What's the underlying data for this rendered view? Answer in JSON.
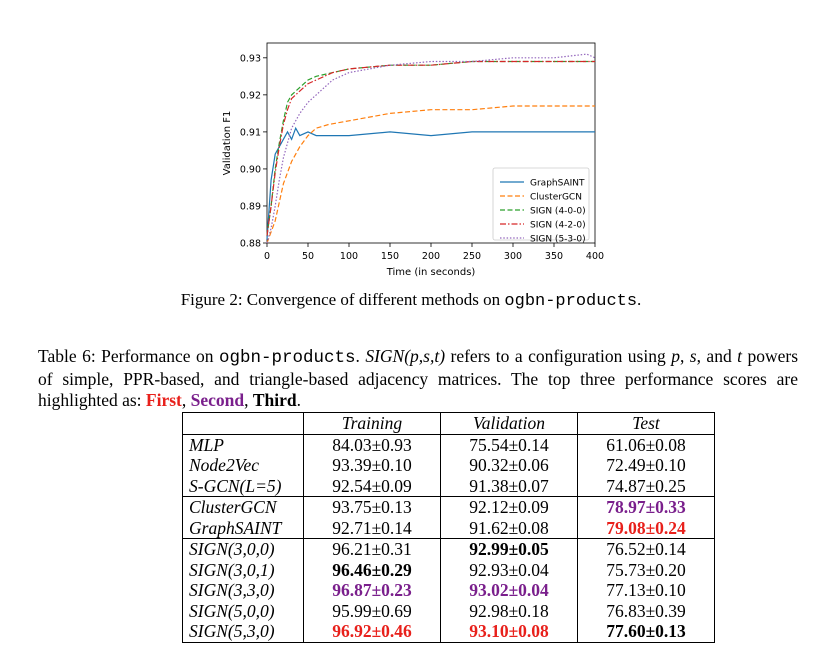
{
  "chart_data": {
    "type": "line",
    "title": "",
    "xlabel": "Time (in seconds)",
    "ylabel": "Validation F1",
    "xlim": [
      0,
      400
    ],
    "ylim": [
      0.88,
      0.934
    ],
    "x_ticks": [
      "0",
      "50",
      "100",
      "150",
      "200",
      "250",
      "300",
      "350",
      "400"
    ],
    "y_ticks": [
      "0.88",
      "0.89",
      "0.90",
      "0.91",
      "0.92",
      "0.93"
    ],
    "legend_position": "lower-right",
    "grid": false,
    "series": [
      {
        "name": "GraphSAINT",
        "color": "#1f77b4",
        "dash": "solid",
        "x": [
          0,
          5,
          10,
          15,
          20,
          25,
          30,
          35,
          40,
          50,
          60,
          80,
          100,
          150,
          200,
          250,
          300,
          350,
          380,
          400
        ],
        "values": [
          0.881,
          0.897,
          0.904,
          0.906,
          0.908,
          0.91,
          0.908,
          0.911,
          0.909,
          0.91,
          0.909,
          0.909,
          0.909,
          0.91,
          0.909,
          0.91,
          0.91,
          0.91,
          0.91,
          0.91
        ]
      },
      {
        "name": "ClusterGCN",
        "color": "#ff7f0e",
        "dash": "dashed",
        "x": [
          0,
          10,
          20,
          30,
          40,
          50,
          60,
          75,
          100,
          150,
          200,
          250,
          300,
          350,
          400
        ],
        "values": [
          0.88,
          0.886,
          0.896,
          0.902,
          0.906,
          0.909,
          0.911,
          0.912,
          0.913,
          0.915,
          0.916,
          0.916,
          0.917,
          0.917,
          0.917
        ]
      },
      {
        "name": "SIGN (4-0-0)",
        "color": "#2ca02c",
        "dash": "dashed",
        "x": [
          0,
          5,
          10,
          15,
          20,
          25,
          30,
          40,
          50,
          60,
          80,
          100,
          150,
          200,
          250,
          300,
          350,
          400
        ],
        "values": [
          0.882,
          0.89,
          0.9,
          0.907,
          0.913,
          0.918,
          0.92,
          0.922,
          0.924,
          0.925,
          0.926,
          0.927,
          0.928,
          0.928,
          0.929,
          0.929,
          0.929,
          0.929
        ]
      },
      {
        "name": "SIGN (4-2-0)",
        "color": "#d62728",
        "dash": "dashdot",
        "x": [
          0,
          5,
          10,
          15,
          20,
          25,
          30,
          40,
          50,
          60,
          80,
          100,
          150,
          200,
          250,
          300,
          350,
          400
        ],
        "values": [
          0.882,
          0.89,
          0.899,
          0.906,
          0.912,
          0.916,
          0.919,
          0.921,
          0.923,
          0.924,
          0.926,
          0.927,
          0.928,
          0.928,
          0.929,
          0.929,
          0.929,
          0.929
        ]
      },
      {
        "name": "SIGN (5-3-0)",
        "color": "#9467bd",
        "dash": "dotted",
        "x": [
          0,
          5,
          10,
          15,
          20,
          25,
          30,
          40,
          50,
          60,
          80,
          100,
          150,
          200,
          250,
          300,
          350,
          390,
          400
        ],
        "values": [
          0.88,
          0.884,
          0.89,
          0.897,
          0.903,
          0.907,
          0.911,
          0.915,
          0.918,
          0.92,
          0.924,
          0.926,
          0.928,
          0.929,
          0.929,
          0.93,
          0.93,
          0.931,
          0.93
        ]
      }
    ]
  },
  "figure_caption": {
    "prefix": "Figure 2: Convergence of different methods on ",
    "code": "ogbn-products",
    "suffix": "."
  },
  "table_caption": {
    "part1": "Table 6: Performance on ",
    "code": "ogbn-products",
    "part2": ". ",
    "sign_label": "SIGN(p,s,t)",
    "part3": " refers to a configuration using ",
    "p": "p",
    "sep1": ", ",
    "s": "s",
    "sep2": ", and ",
    "t": "t",
    "part4": " powers of simple, PPR-based, and triangle-based adjacency matrices. The top three performance scores are highlighted as: ",
    "first": "First",
    "comma1": ", ",
    "second": "Second",
    "comma2": ", ",
    "third": "Third",
    "end": "."
  },
  "table": {
    "headers": [
      "Training",
      "Validation",
      "Test"
    ],
    "rows": [
      {
        "method": "MLP",
        "training": "84.03±0.93",
        "validation": "75.54±0.14",
        "test": "61.06±0.08"
      },
      {
        "method": "Node2Vec",
        "training": "93.39±0.10",
        "validation": "90.32±0.06",
        "test": "72.49±0.10"
      },
      {
        "method": "S-GCN(L=5)",
        "training": "92.54±0.09",
        "validation": "91.38±0.07",
        "test": "74.87±0.25"
      },
      {
        "method": "ClusterGCN",
        "training": "93.75±0.13",
        "validation": "92.12±0.09",
        "test": "78.97±0.33"
      },
      {
        "method": "GraphSAINT",
        "training": "92.71±0.14",
        "validation": "91.62±0.08",
        "test": "79.08±0.24"
      },
      {
        "method": "SIGN(3,0,0)",
        "training": "96.21±0.31",
        "validation": "92.99±0.05",
        "test": "76.52±0.14"
      },
      {
        "method": "SIGN(3,0,1)",
        "training": "96.46±0.29",
        "validation": "92.93±0.04",
        "test": "75.73±0.20"
      },
      {
        "method": "SIGN(3,3,0)",
        "training": "96.87±0.23",
        "validation": "93.02±0.04",
        "test": "77.13±0.10"
      },
      {
        "method": "SIGN(5,0,0)",
        "training": "95.99±0.69",
        "validation": "92.98±0.18",
        "test": "76.83±0.39"
      },
      {
        "method": "SIGN(5,3,0)",
        "training": "96.92±0.46",
        "validation": "93.10±0.08",
        "test": "77.60±0.13"
      }
    ]
  }
}
